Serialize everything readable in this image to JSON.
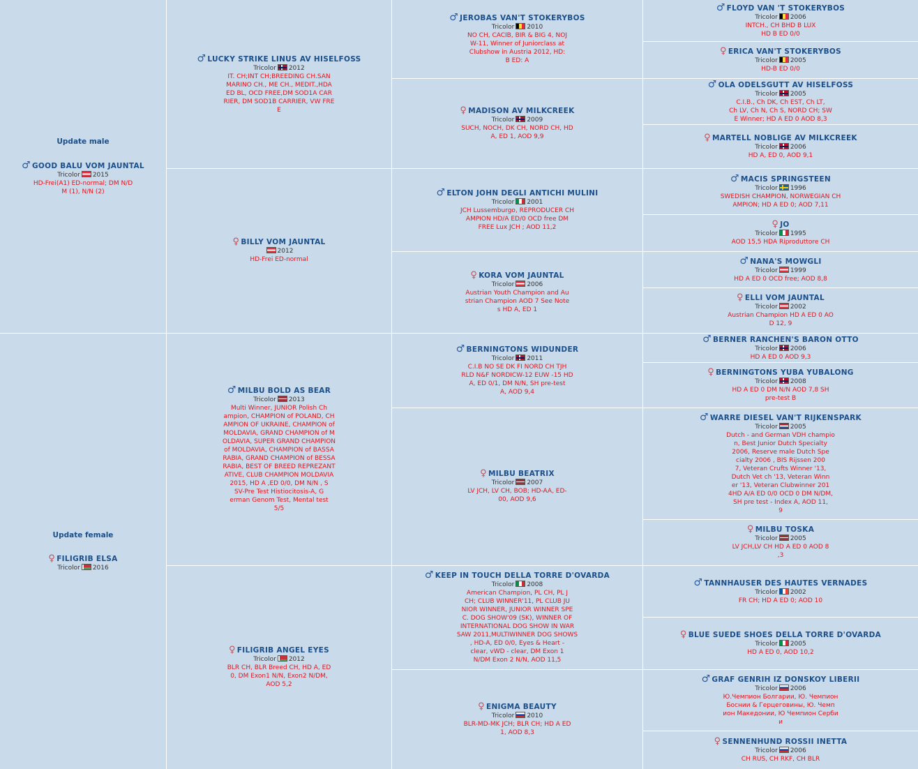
{
  "subject_male": {
    "update_label": "Update male",
    "sex": "male",
    "name": "GOOD BALU VOM JAUNTAL",
    "color": "Tricolor",
    "flag": "at",
    "year": "2015",
    "info": [
      "HD-Frei(A1) ED-normal; DM N/D",
      "M (1), N/N (2)"
    ]
  },
  "subject_female": {
    "update_label": "Update female",
    "sex": "female",
    "name": "FILIGRIB ELSA",
    "color": "Tricolor",
    "flag": "by",
    "year": "2016",
    "info": []
  },
  "gen1": [
    {
      "sex": "male",
      "name": "LUCKY STRIKE LINUS AV HISELFOSS",
      "color": "Tricolor",
      "flag": "no",
      "year": "2012",
      "info": [
        "IT. CH;INT CH;BREEDING CH.SAN",
        "MARINO CH., ME CH., MEDIT.,HDA",
        "ED BL, OCD FREE,DM SOD1A CAR",
        "RIER, DM SOD1B CARRIER, VW FRE",
        "E"
      ]
    },
    {
      "sex": "female",
      "name": "BILLY VOM JAUNTAL",
      "color": "",
      "flag": "at",
      "year": "2012",
      "info": [
        "HD-Frei ED-normal"
      ]
    },
    {
      "sex": "male",
      "name": "MILBU BOLD AS BEAR",
      "color": "Tricolor",
      "flag": "lv",
      "year": "2013",
      "info": [
        "Multi Winner, JUNIOR Polish Ch",
        "ampion, CHAMPION of POLAND, CH",
        "AMPION OF UKRAINE, CHAMPION of",
        "MOLDAVIA, GRAND CHAMPION of M",
        "OLDAVIA, SUPER GRAND CHAMPION",
        "of MOLDAVIA, CHAMPION of BASSA",
        "RABIA, GRAND CHAMPION of BESSA",
        "RABIA, BEST OF BREED REPREZANT",
        "ATIVE, CLUB CHAMPION MOLDAVIA",
        "2015, HD A ,ED 0/0, DM N/N , S",
        "SV-Pre Test Histiocitosis-A, G",
        "erman Genom Test, Mental test",
        "5/5"
      ]
    },
    {
      "sex": "female",
      "name": "FILIGRIB ANGEL EYES",
      "color": "Tricolor",
      "flag": "by",
      "year": "2012",
      "info": [
        "BLR CH, BLR Breed CH, HD A, ED",
        "0, DM Exon1 N/N, Exon2 N/DM,",
        "AOD 5,2"
      ]
    }
  ],
  "gen2": [
    {
      "sex": "male",
      "name": "JEROBAS VAN'T STOKERYBOS",
      "color": "Tricolor",
      "flag": "be",
      "year": "2010",
      "info": [
        "NO CH, CACIB, BIR & BIG 4, NOJ",
        "W-11, Winner of Juniorclass at",
        "Clubshow in Austria 2012, HD:",
        "B ED: A"
      ]
    },
    {
      "sex": "female",
      "name": "MADISON AV MILKCREEK",
      "color": "Tricolor",
      "flag": "no",
      "year": "2009",
      "info": [
        "SUCH, NOCH, DK CH, NORD CH, HD",
        "A, ED 1, AOD 9,9"
      ]
    },
    {
      "sex": "male",
      "name": "ELTON JOHN DEGLI ANTICHI MULINI",
      "color": "Tricolor",
      "flag": "it",
      "year": "2001",
      "info": [
        "JCH Lussemburgo, REPRODUCER CH",
        "AMPION HD/A ED/0 OCD free DM",
        "FREE Lux JCH ; AOD 11,2"
      ]
    },
    {
      "sex": "female",
      "name": "KORA VOM JAUNTAL",
      "color": "Tricolor",
      "flag": "at",
      "year": "2006",
      "info": [
        "Austrian Youth Champion and Au",
        "strian Champion AOD 7 See Note",
        "s HD A, ED 1"
      ]
    },
    {
      "sex": "male",
      "name": "BERNINGTONS WIDUNDER",
      "color": "Tricolor",
      "flag": "no",
      "year": "2011",
      "info": [
        "C.I.B NO SE DK FI NORD CH TJH",
        "RLD N&F NORDICW-12 EUW -15 HD",
        "A, ED 0/1, DM N/N, SH pre-test",
        "A, AOD 9,4"
      ]
    },
    {
      "sex": "female",
      "name": "MILBU BEATRIX",
      "color": "Tricolor",
      "flag": "lv",
      "year": "2007",
      "info": [
        "LV JCH, LV CH, BOB; HD-AA, ED-",
        "00, AOD 9,6"
      ]
    },
    {
      "sex": "male",
      "name": "KEEP IN TOUCH DELLA TORRE D'OVARDA",
      "color": "Tricolor",
      "flag": "it",
      "year": "2008",
      "info": [
        "American Champion, PL CH, PL J",
        "CH; CLUB WINNER'11, PL CLUB JU",
        "NIOR WINNER, JUNIOR WINNER SPE",
        "C. DOG SHOW'09 (SK), WINNER OF",
        "INTERNATIONAL DOG SHOW IN WAR",
        "SAW 2011,MULTIWINNER DOG SHOWS",
        ", HD-A, ED 0/0, Eyes & Heart -",
        "clear, vWD - clear, DM Exon 1",
        "N/DM Exon 2 N/N, AOD 11,5"
      ]
    },
    {
      "sex": "female",
      "name": "ENIGMA BEAUTY",
      "color": "Tricolor",
      "flag": "ru",
      "year": "2010",
      "info": [
        "BLR-MD-MK JCH; BLR CH; HD A ED",
        "1, AOD 8,3"
      ]
    }
  ],
  "gen3": [
    {
      "sex": "male",
      "name": "FLOYD VAN 'T STOKERYBOS",
      "color": "Tricolor",
      "flag": "be",
      "year": "2006",
      "info": [
        "INTCH., CH BHD B LUX",
        "HD B ED 0/0"
      ]
    },
    {
      "sex": "female",
      "name": "ERICA VAN'T STOKERYBOS",
      "color": "Tricolor",
      "flag": "be",
      "year": "2005",
      "info": [
        "HD-B ED 0/0"
      ]
    },
    {
      "sex": "male",
      "name": "OLA ODELSGUTT AV HISELFOSS",
      "color": "Tricolor",
      "flag": "no",
      "year": "2005",
      "info": [
        "C.I.B., Ch DK, Ch EST, Ch LT,",
        "Ch LV, Ch N, Ch S, NORD CH; SW",
        "E Winner; HD A ED 0 AOD 8,3"
      ]
    },
    {
      "sex": "female",
      "name": "MARTELL NOBLIGE AV MILKCREEK",
      "color": "Tricolor",
      "flag": "no",
      "year": "2006",
      "info": [
        "HD A, ED 0, AOD 9,1"
      ]
    },
    {
      "sex": "male",
      "name": "MACIS SPRINGSTEEN",
      "color": "Tricolor",
      "flag": "se",
      "year": "1996",
      "info": [
        "SWEDISH CHAMPION, NORWEGIAN CH",
        "AMPION; HD A ED 0; AOD 7,11"
      ]
    },
    {
      "sex": "female",
      "name": "JO",
      "color": "Tricolor",
      "flag": "it",
      "year": "1995",
      "info": [
        "AOD 15,5 HDA Riproduttore CH"
      ]
    },
    {
      "sex": "male",
      "name": "NANA'S MOWGLI",
      "color": "Tricolor",
      "flag": "at",
      "year": "1999",
      "info": [
        "HD A ED 0 OCD free; AOD 8,8"
      ]
    },
    {
      "sex": "female",
      "name": "ELLI VOM JAUNTAL",
      "color": "Tricolor",
      "flag": "at",
      "year": "2002",
      "info": [
        "Austrian Champion HD A ED 0 AO",
        "D 12, 9"
      ]
    },
    {
      "sex": "male",
      "name": "BERNER RANCHEN'S BARON OTTO",
      "color": "Tricolor",
      "flag": "no",
      "year": "2006",
      "info": [
        "HD A ED 0 AOD 9,3"
      ]
    },
    {
      "sex": "female",
      "name": "BERNINGTONS YUBA YUBALONG",
      "color": "Tricolor",
      "flag": "no",
      "year": "2008",
      "info": [
        "HD A ED 0 DM N/N AOD 7,8 SH",
        "pre-test B"
      ]
    },
    {
      "sex": "male",
      "name": "WARRE DIESEL VAN'T RIJKENSPARK",
      "color": "Tricolor",
      "flag": "nl",
      "year": "2005",
      "info": [
        "Dutch - and German VDH champio",
        "n, Best Junior Dutch Specialty",
        "2006, Reserve male Dutch Spe",
        "cialty 2006 , BIS Rijssen 200",
        "7, Veteran Crufts Winner '13,",
        "Dutch Vet ch '13, Veteran Winn",
        "er '13, Veteran Clubwinner 201",
        "4HD A/A ED 0/0 OCD 0 DM N/DM,",
        "SH pre test - Index A, AOD 11,",
        "9"
      ]
    },
    {
      "sex": "female",
      "name": "MILBU TOSKA",
      "color": "Tricolor",
      "flag": "lv",
      "year": "2005",
      "info": [
        "LV JCH,LV CH HD A ED 0 AOD 8",
        ",3"
      ]
    },
    {
      "sex": "male",
      "name": "TANNHAUSER DES HAUTES VERNADES",
      "color": "Tricolor",
      "flag": "fr",
      "year": "2002",
      "info": [
        "FR CH; HD A ED 0; AOD 10"
      ]
    },
    {
      "sex": "female",
      "name": "BLUE SUEDE SHOES DELLA TORRE D'OVARDA",
      "color": "Tricolor",
      "flag": "it",
      "year": "2005",
      "info": [
        "HD A ED 0, AOD 10,2"
      ]
    },
    {
      "sex": "male",
      "name": "GRAF GENRIH IZ DONSKOY LIBERII",
      "color": "Tricolor",
      "flag": "ru",
      "year": "2006",
      "info": [
        "Ю.Чемпион Болгарии, Ю. Чемпион",
        "Боснии & Герцеговины, Ю. Чемп",
        "ион Македонии, Ю Чемпион Серби",
        "и"
      ]
    },
    {
      "sex": "female",
      "name": "SENNENHUND ROSSII INETTA",
      "color": "Tricolor",
      "flag": "ru",
      "year": "2006",
      "info": [
        "CH RUS, CH RKF, CH BLR"
      ]
    }
  ]
}
